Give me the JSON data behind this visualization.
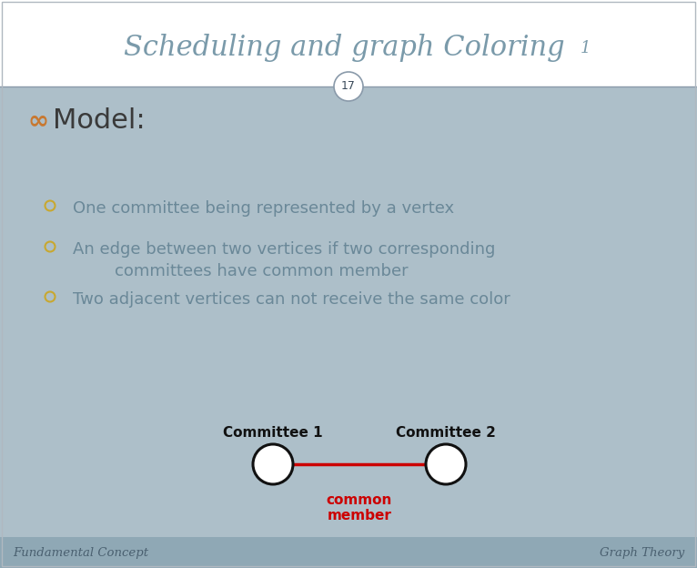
{
  "title_main": "Scheduling and graph Coloring",
  "title_subscript": "1",
  "slide_number": "17",
  "background_color": "#adbfc9",
  "header_bg": "#ffffff",
  "footer_bg": "#8fa8b5",
  "title_color": "#7a9aaa",
  "model_color": "#3a3a3a",
  "model_prefix_color": "#c87830",
  "bullet_color": "#c8a830",
  "bullet_text_color": "#6a8898",
  "bullets": [
    "One committee being represented by a vertex",
    "An edge between two vertices if two corresponding\ncommittees have common member",
    "Two adjacent vertices can not receive the same color"
  ],
  "committee1_label": "Committee 1",
  "committee2_label": "Committee 2",
  "common_label": "common\nmember",
  "common_color": "#cc0000",
  "node_color": "#ffffff",
  "node_edge_color": "#111111",
  "edge_color": "#cc0000",
  "footer_left": "Fundamental Concept",
  "footer_right": "Graph Theory",
  "footer_text_color": "#4a6070",
  "divider_color": "#8a9aaa"
}
